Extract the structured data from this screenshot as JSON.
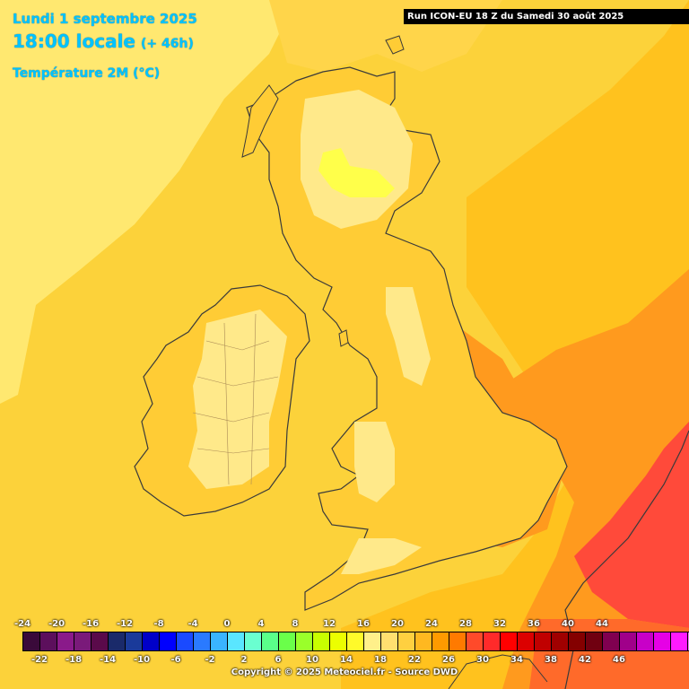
{
  "header": {
    "date": "Lundi 1 septembre 2025",
    "time": "18:00 locale",
    "lead": "(+ 46h)",
    "parameter": "Température 2M (°C)"
  },
  "run_banner": "Run ICON-EU 18 Z du Samedi 30 août 2025",
  "legend": {
    "top_ticks": [
      "-24",
      "-20",
      "-16",
      "-12",
      "-8",
      "-4",
      "0",
      "4",
      "8",
      "12",
      "16",
      "20",
      "24",
      "28",
      "32",
      "36",
      "40",
      "44"
    ],
    "bottom_ticks": [
      "-22",
      "-18",
      "-14",
      "-10",
      "-6",
      "-2",
      "2",
      "6",
      "10",
      "14",
      "18",
      "22",
      "26",
      "30",
      "34",
      "38",
      "42",
      "46"
    ],
    "colors": [
      "#3a0a3a",
      "#5c0f5c",
      "#8a1a8a",
      "#7a1a7a",
      "#5a0a4a",
      "#1a2a6a",
      "#1a3a9a",
      "#0000c8",
      "#0000ff",
      "#1a4aff",
      "#2a7aff",
      "#3ab4ff",
      "#5ae6ff",
      "#6affd0",
      "#5aff8a",
      "#6aff4a",
      "#9aff2a",
      "#c8ff00",
      "#ecff00",
      "#fffa2a",
      "#fff08a",
      "#ffe070",
      "#ffd040",
      "#ffb820",
      "#ff9a00",
      "#ff7a00",
      "#ff4a2a",
      "#ff2a2a",
      "#ff0000",
      "#dc0000",
      "#c00000",
      "#a00000",
      "#840000",
      "#700010",
      "#800050",
      "#a0008a",
      "#c800c8",
      "#e600e6",
      "#ff1aff",
      "#ff7aff"
    ]
  },
  "copyright": "Copyright © 2025 Meteociel.fr - Source DWD",
  "map_colors": {
    "sea_base": "#fcd23a",
    "cool_sea": "#ffe870",
    "land_mild": "#ffcc35",
    "land_cool": "#ffe98a",
    "highland": "#ffff4a",
    "warm": "#ff9a1e",
    "hot": "#ff4a3a",
    "coast": "#3a3a3a"
  }
}
